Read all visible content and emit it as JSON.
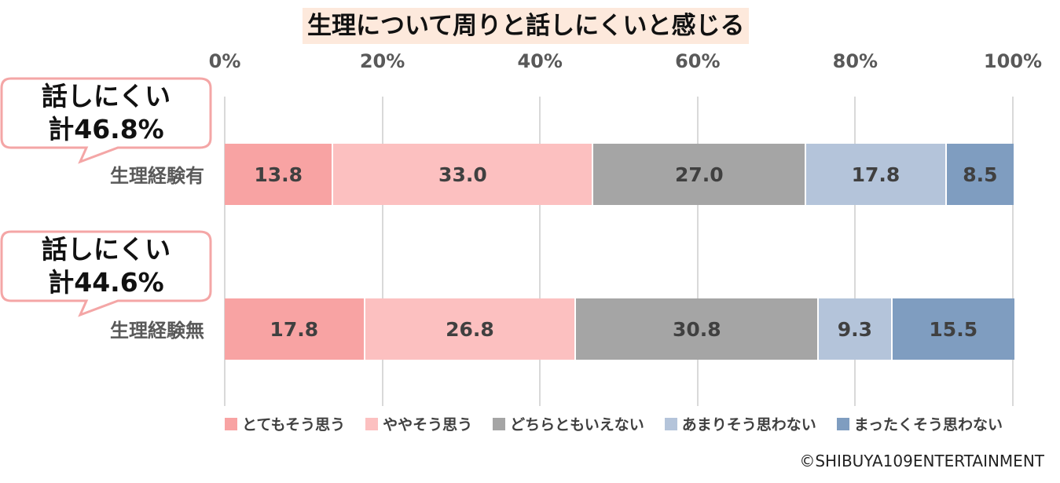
{
  "chart_data": {
    "type": "bar",
    "orientation": "horizontal",
    "stacked": true,
    "title": "生理について周りと話しにくいと感じる",
    "x_ticks": [
      "0%",
      "20%",
      "40%",
      "60%",
      "80%",
      "100%"
    ],
    "xlim": [
      0,
      100
    ],
    "grid": true,
    "legend_position": "bottom",
    "categories": [
      "生理経験有",
      "生理経験無"
    ],
    "series": [
      {
        "name": "とてもそう思う",
        "color": "#f8a3a3",
        "values": [
          13.8,
          17.8
        ],
        "labels": [
          "13.8",
          "17.8"
        ]
      },
      {
        "name": "ややそう思う",
        "color": "#fcc0c0",
        "values": [
          33.0,
          26.8
        ],
        "labels": [
          "33.0",
          "26.8"
        ]
      },
      {
        "name": "どちらともいえない",
        "color": "#a5a5a5",
        "values": [
          27.0,
          30.8
        ],
        "labels": [
          "27.0",
          "30.8"
        ]
      },
      {
        "name": "あまりそう思わない",
        "color": "#b4c4da",
        "values": [
          17.8,
          9.3
        ],
        "labels": [
          "17.8",
          "9.3"
        ]
      },
      {
        "name": "まったくそう思わない",
        "color": "#7f9dc0",
        "values": [
          8.5,
          15.5
        ],
        "labels": [
          "8.5",
          "15.5"
        ]
      }
    ],
    "callouts": [
      {
        "line1": "話しにくい",
        "line2": "計46.8%"
      },
      {
        "line1": "話しにくい",
        "line2": "計44.6%"
      }
    ]
  },
  "credit": "©SHIBUYA109ENTERTAINMENT",
  "colors": {
    "callout_border": "#f4a6a6",
    "title_bg": "#fde9dc"
  }
}
